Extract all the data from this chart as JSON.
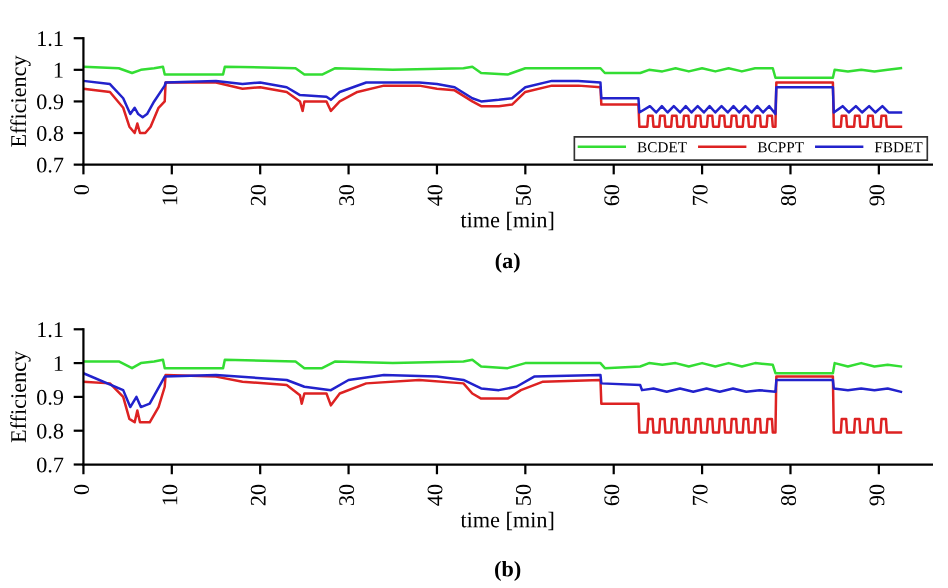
{
  "chart_data": [
    {
      "type": "line",
      "title": "(a)",
      "xlabel": "time [min]",
      "ylabel": "Efficiency",
      "xlim": [
        0,
        96
      ],
      "xticks": [
        0,
        10,
        20,
        30,
        40,
        50,
        60,
        70,
        80,
        90
      ],
      "ylim": [
        0.7,
        1.1
      ],
      "yticks": [
        0.7,
        0.8,
        0.9,
        1,
        1.1
      ],
      "legend": "bottom right",
      "grid": false,
      "line_style": "solid",
      "series": [
        {
          "name": "BCDET",
          "color": "#33dd33",
          "x": [
            0,
            4,
            5.5,
            6.5,
            8,
            9,
            9.2,
            15.8,
            16,
            24,
            25,
            27,
            28.5,
            35,
            43,
            44,
            45,
            48,
            50,
            58.5,
            59,
            63,
            64,
            65.5,
            67,
            68.5,
            70,
            71.5,
            73,
            74.5,
            76,
            78,
            78.3,
            84.8,
            85,
            86.5,
            88,
            89.5,
            91,
            92.5
          ],
          "values": [
            1.01,
            1.005,
            0.99,
            1.0,
            1.005,
            1.01,
            0.985,
            0.985,
            1.01,
            1.005,
            0.985,
            0.985,
            1.005,
            1.0,
            1.005,
            1.01,
            0.99,
            0.985,
            1.005,
            1.005,
            0.99,
            0.99,
            1.0,
            0.995,
            1.005,
            0.995,
            1.005,
            0.995,
            1.005,
            0.995,
            1.005,
            1.005,
            0.975,
            0.975,
            1.0,
            0.995,
            1.0,
            0.995,
            1.0,
            1.005
          ]
        },
        {
          "name": "BCPPT",
          "color": "#dd2222",
          "x": [
            0,
            3,
            4.5,
            5.2,
            5.8,
            6.1,
            6.4,
            7,
            7.6,
            8.5,
            9.2,
            9.3,
            15,
            18,
            20,
            23,
            24.5,
            24.8,
            25,
            27.5,
            28,
            29,
            31,
            34,
            38,
            40,
            42,
            44,
            45,
            47,
            48.5,
            50,
            53,
            56,
            58.5,
            58.6,
            62.8,
            62.9,
            63.8,
            63.9,
            64.4,
            64.5,
            65.15,
            65.25,
            65.75,
            65.85,
            66.5,
            66.6,
            67.1,
            67.2,
            67.85,
            67.95,
            68.45,
            68.55,
            69.2,
            69.3,
            69.8,
            69.9,
            70.55,
            70.65,
            71.15,
            71.25,
            71.9,
            72.0,
            72.5,
            72.6,
            73.25,
            73.35,
            73.85,
            73.95,
            74.6,
            74.7,
            75.2,
            75.3,
            75.95,
            76.05,
            76.55,
            76.65,
            77.3,
            77.4,
            77.9,
            78.0,
            78.3,
            78.4,
            84.8,
            84.9,
            85.7,
            85.8,
            86.3,
            86.4,
            87.2,
            87.3,
            87.8,
            87.9,
            88.7,
            88.8,
            89.3,
            89.4,
            90.2,
            90.3,
            90.8,
            90.9,
            92.5
          ],
          "values": [
            0.94,
            0.93,
            0.88,
            0.82,
            0.8,
            0.83,
            0.8,
            0.8,
            0.82,
            0.88,
            0.9,
            0.96,
            0.96,
            0.94,
            0.945,
            0.93,
            0.9,
            0.87,
            0.9,
            0.9,
            0.87,
            0.9,
            0.93,
            0.95,
            0.95,
            0.94,
            0.935,
            0.9,
            0.885,
            0.885,
            0.89,
            0.93,
            0.95,
            0.95,
            0.945,
            0.89,
            0.89,
            0.82,
            0.82,
            0.855,
            0.855,
            0.82,
            0.82,
            0.855,
            0.855,
            0.82,
            0.82,
            0.855,
            0.855,
            0.82,
            0.82,
            0.855,
            0.855,
            0.82,
            0.82,
            0.855,
            0.855,
            0.82,
            0.82,
            0.855,
            0.855,
            0.82,
            0.82,
            0.855,
            0.855,
            0.82,
            0.82,
            0.855,
            0.855,
            0.82,
            0.82,
            0.855,
            0.855,
            0.82,
            0.82,
            0.855,
            0.855,
            0.82,
            0.82,
            0.855,
            0.855,
            0.82,
            0.82,
            0.96,
            0.96,
            0.82,
            0.82,
            0.855,
            0.855,
            0.82,
            0.82,
            0.855,
            0.855,
            0.82,
            0.82,
            0.855,
            0.855,
            0.82,
            0.82,
            0.855,
            0.855,
            0.82,
            0.82
          ]
        },
        {
          "name": "FBDET",
          "color": "#2222cc",
          "x": [
            0,
            3,
            4.5,
            5.3,
            5.8,
            6.2,
            6.7,
            7.2,
            8,
            9.2,
            9.3,
            15,
            18,
            20,
            23,
            24.5,
            27.5,
            28,
            29,
            32,
            38,
            40,
            42,
            44,
            45,
            47,
            48.5,
            50,
            53,
            56,
            58.5,
            58.6,
            62.8,
            62.9,
            64.1,
            64.8,
            65.45,
            66.1,
            66.8,
            67.5,
            68.15,
            68.8,
            69.5,
            70.2,
            70.85,
            71.5,
            72.2,
            72.9,
            73.55,
            74.2,
            74.9,
            75.6,
            76.25,
            76.9,
            77.6,
            78.3,
            78.4,
            84.8,
            84.9,
            85.9,
            86.6,
            87.4,
            88.1,
            88.9,
            89.6,
            90.4,
            91.1,
            92.5
          ],
          "values": [
            0.965,
            0.955,
            0.91,
            0.86,
            0.88,
            0.86,
            0.85,
            0.86,
            0.9,
            0.95,
            0.96,
            0.965,
            0.955,
            0.96,
            0.945,
            0.92,
            0.915,
            0.905,
            0.93,
            0.96,
            0.96,
            0.955,
            0.945,
            0.91,
            0.9,
            0.905,
            0.91,
            0.945,
            0.965,
            0.965,
            0.96,
            0.91,
            0.91,
            0.865,
            0.885,
            0.865,
            0.885,
            0.865,
            0.885,
            0.865,
            0.885,
            0.865,
            0.885,
            0.865,
            0.885,
            0.865,
            0.885,
            0.865,
            0.885,
            0.865,
            0.885,
            0.865,
            0.885,
            0.865,
            0.885,
            0.86,
            0.945,
            0.945,
            0.865,
            0.885,
            0.865,
            0.885,
            0.865,
            0.885,
            0.865,
            0.885,
            0.865,
            0.865
          ]
        }
      ]
    },
    {
      "type": "line",
      "title": "(b)",
      "xlabel": "time [min]",
      "ylabel": "Efficiency",
      "xlim": [
        0,
        96
      ],
      "xticks": [
        0,
        10,
        20,
        30,
        40,
        50,
        60,
        70,
        80,
        90
      ],
      "ylim": [
        0.7,
        1.1
      ],
      "yticks": [
        0.7,
        0.8,
        0.9,
        1,
        1.1
      ],
      "grid": false,
      "line_style": "solid",
      "series": [
        {
          "color": "#33dd33",
          "x": [
            0,
            4,
            5.5,
            6.5,
            8,
            9,
            9.2,
            15.8,
            16,
            24,
            25,
            27,
            28.5,
            35,
            43,
            44,
            45,
            48,
            50,
            58.5,
            59,
            63,
            64,
            65.5,
            67,
            68.5,
            70,
            71.5,
            73,
            74.5,
            76,
            78,
            78.3,
            84.8,
            85,
            86.5,
            88,
            89.5,
            91,
            92.5
          ],
          "values": [
            1.005,
            1.005,
            0.985,
            1.0,
            1.005,
            1.01,
            0.985,
            0.985,
            1.01,
            1.005,
            0.985,
            0.985,
            1.005,
            1.0,
            1.005,
            1.01,
            0.99,
            0.985,
            1.0,
            1.0,
            0.985,
            0.99,
            1.0,
            0.995,
            1.0,
            0.99,
            1.0,
            0.99,
            1.0,
            0.99,
            1.0,
            0.995,
            0.97,
            0.97,
            1.0,
            0.99,
            1.0,
            0.99,
            0.995,
            0.99
          ]
        },
        {
          "color": "#dd2222",
          "x": [
            0,
            3,
            4.5,
            5.2,
            5.8,
            6.1,
            6.4,
            7.5,
            8.5,
            9.2,
            9.3,
            15,
            18,
            23,
            24.5,
            24.7,
            25,
            27.5,
            28,
            29,
            32,
            38,
            43,
            44,
            45,
            48,
            49.5,
            52,
            58.5,
            58.6,
            62.8,
            62.9,
            63.8,
            63.9,
            64.4,
            64.5,
            65.15,
            65.25,
            65.75,
            65.85,
            66.5,
            66.6,
            67.1,
            67.2,
            67.85,
            67.95,
            68.45,
            68.55,
            69.2,
            69.3,
            69.8,
            69.9,
            70.55,
            70.65,
            71.15,
            71.25,
            71.9,
            72.0,
            72.5,
            72.6,
            73.25,
            73.35,
            73.85,
            73.95,
            74.6,
            74.7,
            75.2,
            75.3,
            75.95,
            76.05,
            76.55,
            76.65,
            77.3,
            77.4,
            77.9,
            78.0,
            78.3,
            78.4,
            84.8,
            84.9,
            85.7,
            85.8,
            86.3,
            86.4,
            87.2,
            87.3,
            87.8,
            87.9,
            88.7,
            88.8,
            89.3,
            89.4,
            90.2,
            90.3,
            90.8,
            90.9,
            92.5
          ],
          "values": [
            0.945,
            0.94,
            0.9,
            0.835,
            0.825,
            0.86,
            0.825,
            0.825,
            0.87,
            0.93,
            0.965,
            0.96,
            0.945,
            0.935,
            0.905,
            0.88,
            0.91,
            0.91,
            0.875,
            0.91,
            0.94,
            0.95,
            0.94,
            0.91,
            0.895,
            0.895,
            0.92,
            0.945,
            0.95,
            0.88,
            0.88,
            0.795,
            0.795,
            0.835,
            0.835,
            0.795,
            0.795,
            0.835,
            0.835,
            0.795,
            0.795,
            0.835,
            0.835,
            0.795,
            0.795,
            0.835,
            0.835,
            0.795,
            0.795,
            0.835,
            0.835,
            0.795,
            0.795,
            0.835,
            0.835,
            0.795,
            0.795,
            0.835,
            0.835,
            0.795,
            0.795,
            0.835,
            0.835,
            0.795,
            0.795,
            0.835,
            0.835,
            0.795,
            0.795,
            0.835,
            0.835,
            0.795,
            0.795,
            0.835,
            0.835,
            0.795,
            0.795,
            0.96,
            0.96,
            0.795,
            0.795,
            0.835,
            0.835,
            0.795,
            0.795,
            0.835,
            0.835,
            0.795,
            0.795,
            0.835,
            0.835,
            0.795,
            0.795,
            0.835,
            0.835,
            0.795,
            0.795
          ]
        },
        {
          "color": "#2222cc",
          "x": [
            0,
            4.5,
            5.3,
            6,
            6.5,
            7.5,
            9.2,
            15,
            23,
            25,
            28,
            30,
            34,
            40,
            43,
            45,
            47,
            49,
            51,
            58.5,
            58.6,
            63,
            63.2,
            64.5,
            66,
            67.5,
            69,
            70.5,
            72,
            73.5,
            75,
            76.5,
            78.3,
            78.4,
            84.8,
            84.9,
            86.5,
            88,
            89.5,
            91,
            92.5
          ],
          "values": [
            0.97,
            0.92,
            0.87,
            0.9,
            0.87,
            0.88,
            0.96,
            0.965,
            0.95,
            0.93,
            0.92,
            0.95,
            0.965,
            0.96,
            0.95,
            0.925,
            0.92,
            0.93,
            0.96,
            0.965,
            0.94,
            0.935,
            0.92,
            0.925,
            0.915,
            0.925,
            0.915,
            0.925,
            0.915,
            0.925,
            0.915,
            0.92,
            0.915,
            0.95,
            0.95,
            0.925,
            0.92,
            0.925,
            0.92,
            0.925,
            0.915
          ]
        }
      ]
    }
  ]
}
